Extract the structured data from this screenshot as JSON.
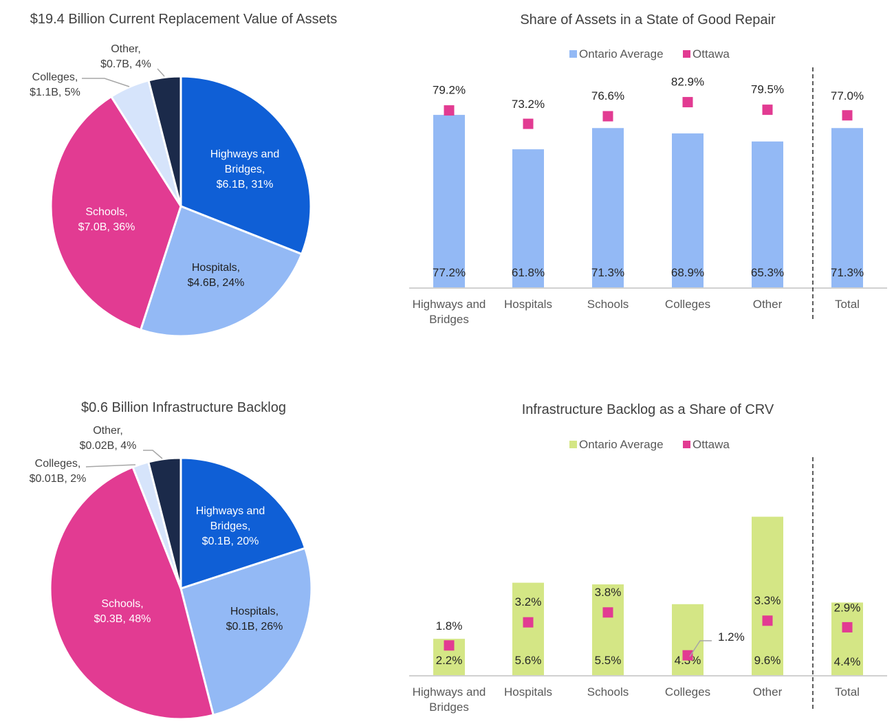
{
  "chart_data": [
    {
      "type": "pie",
      "title": "$19.4 Billion Current Replacement Value of Assets",
      "slices": [
        {
          "name": "Highways and Bridges",
          "value_label": "$6.1B",
          "value": 6.1,
          "percent": 31,
          "color": "#0f5fd6",
          "label_lines": [
            "Highways and",
            "Bridges,",
            "$6.1B, 31%"
          ],
          "label_color": "light"
        },
        {
          "name": "Hospitals",
          "value_label": "$4.6B",
          "value": 4.6,
          "percent": 24,
          "color": "#93b9f5",
          "label_lines": [
            "Hospitals,",
            "$4.6B, 24%"
          ],
          "label_color": "dark"
        },
        {
          "name": "Schools",
          "value_label": "$7.0B",
          "value": 7.0,
          "percent": 36,
          "color": "#e23b92",
          "label_lines": [
            "Schools,",
            "$7.0B, 36%"
          ],
          "label_color": "light"
        },
        {
          "name": "Colleges",
          "value_label": "$1.1B",
          "value": 1.1,
          "percent": 5,
          "color": "#d6e4fb",
          "label_lines": [
            "Colleges,",
            "$1.1B, 5%"
          ],
          "label_color": "outside"
        },
        {
          "name": "Other",
          "value_label": "$0.7B",
          "value": 0.7,
          "percent": 4,
          "color": "#1b2a4a",
          "label_lines": [
            "Other,",
            "$0.7B, 4%"
          ],
          "label_color": "outside"
        }
      ]
    },
    {
      "type": "bar",
      "title": "Share of Assets in a State of Good Repair",
      "categories": [
        "Highways and Bridges",
        "Hospitals",
        "Schools",
        "Colleges",
        "Other",
        "Total"
      ],
      "category_lines": [
        [
          "Highways and",
          "Bridges"
        ],
        [
          "Hospitals"
        ],
        [
          "Schools"
        ],
        [
          "Colleges"
        ],
        [
          "Other"
        ],
        [
          "Total"
        ]
      ],
      "series": [
        {
          "name": "Ontario Average",
          "kind": "bar",
          "color": "#93b9f5",
          "values": [
            77.2,
            61.8,
            71.3,
            68.9,
            65.3,
            71.3
          ],
          "labels": [
            "77.2%",
            "61.8%",
            "71.3%",
            "68.9%",
            "65.3%",
            "71.3%"
          ]
        },
        {
          "name": "Ottawa",
          "kind": "marker",
          "color": "#e23b92",
          "values": [
            79.2,
            73.2,
            76.6,
            82.9,
            79.5,
            77.0
          ],
          "labels": [
            "79.2%",
            "73.2%",
            "76.6%",
            "82.9%",
            "79.5%",
            "77.0%"
          ]
        }
      ],
      "legend": "top-center",
      "ylim": [
        0,
        100
      ],
      "separator_before": "Total"
    },
    {
      "type": "pie",
      "title": "$0.6 Billion Infrastructure Backlog",
      "slices": [
        {
          "name": "Highways and Bridges",
          "value_label": "$0.1B",
          "value": 0.1,
          "percent": 20,
          "color": "#0f5fd6",
          "label_lines": [
            "Highways and",
            "Bridges,",
            "$0.1B, 20%"
          ],
          "label_color": "light"
        },
        {
          "name": "Hospitals",
          "value_label": "$0.1B",
          "value": 0.1,
          "percent": 26,
          "color": "#93b9f5",
          "label_lines": [
            "Hospitals,",
            "$0.1B, 26%"
          ],
          "label_color": "dark"
        },
        {
          "name": "Schools",
          "value_label": "$0.3B",
          "value": 0.3,
          "percent": 48,
          "color": "#e23b92",
          "label_lines": [
            "Schools,",
            "$0.3B, 48%"
          ],
          "label_color": "light"
        },
        {
          "name": "Colleges",
          "value_label": "$0.01B",
          "value": 0.01,
          "percent": 2,
          "color": "#d6e4fb",
          "label_lines": [
            "Colleges,",
            "$0.01B, 2%"
          ],
          "label_color": "outside"
        },
        {
          "name": "Other",
          "value_label": "$0.02B",
          "value": 0.02,
          "percent": 4,
          "color": "#1b2a4a",
          "label_lines": [
            "Other,",
            "$0.02B, 4%"
          ],
          "label_color": "outside"
        }
      ]
    },
    {
      "type": "bar",
      "title": "Infrastructure Backlog as a Share of CRV",
      "categories": [
        "Highways and Bridges",
        "Hospitals",
        "Schools",
        "Colleges",
        "Other",
        "Total"
      ],
      "category_lines": [
        [
          "Highways and",
          "Bridges"
        ],
        [
          "Hospitals"
        ],
        [
          "Schools"
        ],
        [
          "Colleges"
        ],
        [
          "Other"
        ],
        [
          "Total"
        ]
      ],
      "series": [
        {
          "name": "Ontario Average",
          "kind": "bar",
          "color": "#d4e685",
          "values": [
            2.2,
            5.6,
            5.5,
            4.3,
            9.6,
            4.4
          ],
          "labels": [
            "2.2%",
            "5.6%",
            "5.5%",
            "4.3%",
            "9.6%",
            "4.4%"
          ]
        },
        {
          "name": "Ottawa",
          "kind": "marker",
          "color": "#e23b92",
          "values": [
            1.8,
            3.2,
            3.8,
            1.2,
            3.3,
            2.9
          ],
          "labels": [
            "1.8%",
            "3.2%",
            "3.8%",
            "1.2%",
            "3.3%",
            "2.9%"
          ]
        }
      ],
      "legend": "top-center",
      "ylim": [
        0,
        10.5
      ],
      "separator_before": "Total"
    }
  ]
}
